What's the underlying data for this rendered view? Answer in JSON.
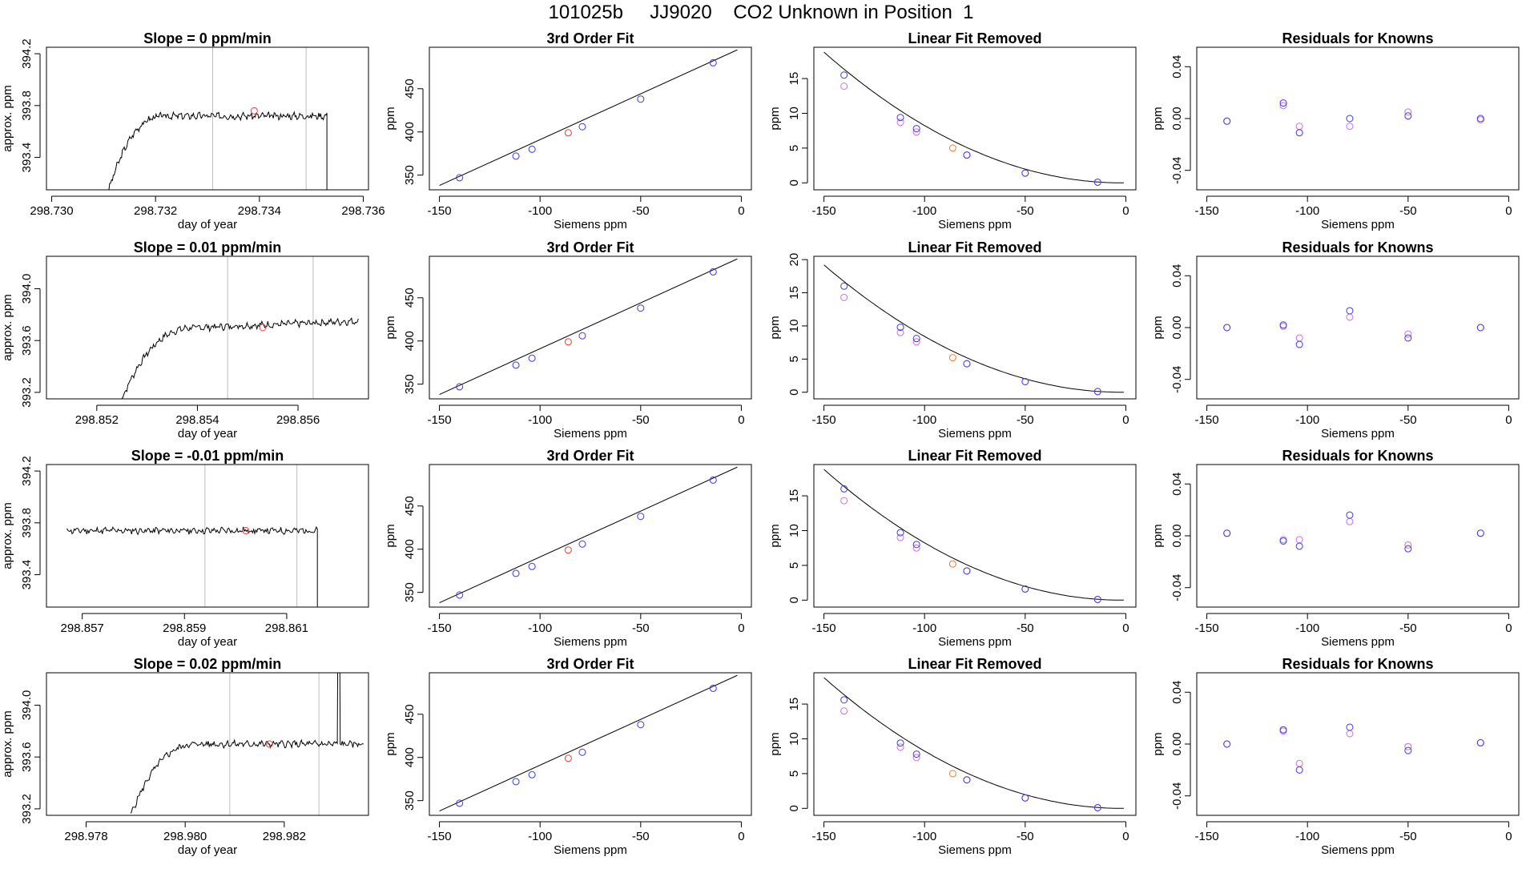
{
  "figure": {
    "title": "101025b     JJ9020    CO2 Unknown in Position  1"
  },
  "colors": {
    "axis": "#000000",
    "trace": "#000000",
    "vline": "#bdbdbd",
    "current_point": "#e8413c",
    "known_points": "#3a3ae8",
    "alt_points": "#d46be0",
    "unknown_fit_point": "#e8412c",
    "unknown_orange": "#f07a2a"
  },
  "chart_data": [
    {
      "type": "line",
      "row": 0,
      "col": 0,
      "title": "Slope =  0  ppm/min",
      "xlabel": "day of year",
      "ylabel": "approx. ppm",
      "xlim": [
        298.7299,
        298.7361
      ],
      "ylim": [
        393.15,
        394.25
      ],
      "xticks": [
        298.73,
        298.732,
        298.734,
        298.736
      ],
      "xtick_labels": [
        "298.730",
        "298.732",
        "298.734",
        "298.736"
      ],
      "yticks": [
        393.4,
        393.8,
        394.2
      ],
      "ytick_labels": [
        "393.4",
        "393.8",
        "394.2"
      ],
      "vlines": [
        298.7331,
        298.7349
      ],
      "current_point": {
        "x": 298.7339,
        "y": 393.76
      },
      "trace": {
        "start": 298.7311,
        "plateau_from": 298.7322,
        "end": 298.7353,
        "base": 393.72,
        "low": 393.15,
        "amplitude": 0.02,
        "seed": 3
      }
    },
    {
      "type": "scatter",
      "row": 0,
      "col": 1,
      "title": "3rd Order Fit",
      "xlabel": "Siemens ppm",
      "ylabel": "ppm",
      "xlim": [
        -155,
        5
      ],
      "ylim": [
        333,
        498
      ],
      "xticks": [
        -150,
        -100,
        -50,
        0
      ],
      "xtick_labels": [
        "-150",
        "-100",
        "-50",
        "0"
      ],
      "yticks": [
        350,
        400,
        450
      ],
      "ytick_labels": [
        "350",
        "400",
        "450"
      ],
      "fit_line": [
        [
          -150,
          338
        ],
        [
          -2,
          495
        ]
      ],
      "known_points": [
        [
          -140,
          347
        ],
        [
          -112,
          372
        ],
        [
          -104,
          380
        ],
        [
          -79,
          406
        ],
        [
          -50,
          438
        ],
        [
          -14,
          480
        ]
      ],
      "unknown_point": [
        -86,
        399
      ]
    },
    {
      "type": "scatter",
      "row": 0,
      "col": 2,
      "title": "Linear Fit Removed",
      "xlabel": "Siemens ppm",
      "ylabel": "ppm",
      "xlim": [
        -155,
        5
      ],
      "ylim": [
        -1,
        19.5
      ],
      "xticks": [
        -150,
        -100,
        -50,
        0
      ],
      "xtick_labels": [
        "-150",
        "-100",
        "-50",
        "0"
      ],
      "yticks": [
        0,
        5,
        10,
        15
      ],
      "ytick_labels": [
        "0",
        "5",
        "10",
        "15"
      ],
      "curve": {
        "x0": -150,
        "x1": -1,
        "ymax": 18.8,
        "vertex": -2
      },
      "known_points": [
        [
          -140,
          15.5
        ],
        [
          -112,
          9.4
        ],
        [
          -104,
          7.8
        ],
        [
          -79,
          4.0
        ],
        [
          -50,
          1.4
        ],
        [
          -14,
          0.1
        ]
      ],
      "alt_points": [
        [
          -140,
          13.9
        ],
        [
          -112,
          8.7
        ],
        [
          -104,
          7.3
        ],
        [
          -79,
          4.0
        ],
        [
          -50,
          1.4
        ],
        [
          -14,
          0.1
        ]
      ],
      "unknown_point": [
        -86,
        5.0
      ]
    },
    {
      "type": "scatter",
      "row": 0,
      "col": 3,
      "title": "Residuals for Knowns",
      "xlabel": "Siemens ppm",
      "ylabel": "ppm",
      "xlim": [
        -155,
        5
      ],
      "ylim": [
        -0.055,
        0.055
      ],
      "xticks": [
        -150,
        -100,
        -50,
        0
      ],
      "xtick_labels": [
        "-150",
        "-100",
        "-50",
        "0"
      ],
      "yticks": [
        -0.04,
        0.0,
        0.04
      ],
      "ytick_labels": [
        "-0.04",
        "0.00",
        "0.04"
      ],
      "known_points": [
        [
          -140,
          -0.002
        ],
        [
          -112,
          0.012
        ],
        [
          -104,
          -0.011
        ],
        [
          -79,
          0.0
        ],
        [
          -50,
          0.002
        ],
        [
          -14,
          0.0
        ]
      ],
      "alt_points": [
        [
          -140,
          -0.002
        ],
        [
          -112,
          0.01
        ],
        [
          -104,
          -0.006
        ],
        [
          -79,
          -0.006
        ],
        [
          -50,
          0.005
        ],
        [
          -14,
          -0.001
        ]
      ]
    },
    {
      "type": "line",
      "row": 1,
      "col": 0,
      "title": "Slope =  0.01  ppm/min",
      "xlabel": "day of year",
      "ylabel": "approx. ppm",
      "xlim": [
        298.851,
        298.8574
      ],
      "ylim": [
        393.15,
        394.25
      ],
      "xticks": [
        298.852,
        298.854,
        298.856
      ],
      "xtick_labels": [
        "298.852",
        "298.854",
        "298.856"
      ],
      "yticks": [
        393.2,
        393.6,
        394.0
      ],
      "ytick_labels": [
        "393.2",
        "393.6",
        "394.0"
      ],
      "vlines": [
        298.8546,
        298.8563
      ],
      "current_point": {
        "x": 298.8553,
        "y": 393.7
      },
      "trace": {
        "start": 298.8525,
        "plateau_from": 298.854,
        "end": 298.8572,
        "base": 393.7,
        "low": 393.15,
        "amplitude": 0.02,
        "seed": 7,
        "slope": 0.05
      }
    },
    {
      "type": "scatter",
      "row": 1,
      "col": 1,
      "title": "3rd Order Fit",
      "xlabel": "Siemens ppm",
      "ylabel": "ppm",
      "xlim": [
        -155,
        5
      ],
      "ylim": [
        333,
        498
      ],
      "xticks": [
        -150,
        -100,
        -50,
        0
      ],
      "xtick_labels": [
        "-150",
        "-100",
        "-50",
        "0"
      ],
      "yticks": [
        350,
        400,
        450
      ],
      "ytick_labels": [
        "350",
        "400",
        "450"
      ],
      "fit_line": [
        [
          -150,
          338
        ],
        [
          -2,
          495
        ]
      ],
      "known_points": [
        [
          -140,
          347
        ],
        [
          -112,
          372
        ],
        [
          -104,
          380
        ],
        [
          -79,
          406
        ],
        [
          -50,
          438
        ],
        [
          -14,
          480
        ]
      ],
      "unknown_point": [
        -86,
        399
      ]
    },
    {
      "type": "scatter",
      "row": 1,
      "col": 2,
      "title": "Linear Fit Removed",
      "xlabel": "Siemens ppm",
      "ylabel": "ppm",
      "xlim": [
        -155,
        5
      ],
      "ylim": [
        -1,
        20.5
      ],
      "xticks": [
        -150,
        -100,
        -50,
        0
      ],
      "xtick_labels": [
        "-150",
        "-100",
        "-50",
        "0"
      ],
      "yticks": [
        0,
        5,
        10,
        15,
        20
      ],
      "ytick_labels": [
        "0",
        "5",
        "10",
        "15",
        "20"
      ],
      "curve": {
        "x0": -150,
        "x1": -1,
        "ymax": 19.2,
        "vertex": -2
      },
      "known_points": [
        [
          -140,
          16.0
        ],
        [
          -112,
          9.8
        ],
        [
          -104,
          8.1
        ],
        [
          -79,
          4.3
        ],
        [
          -50,
          1.6
        ],
        [
          -14,
          0.1
        ]
      ],
      "alt_points": [
        [
          -140,
          14.3
        ],
        [
          -112,
          9.0
        ],
        [
          -104,
          7.6
        ],
        [
          -79,
          4.3
        ],
        [
          -50,
          1.6
        ],
        [
          -14,
          0.1
        ]
      ],
      "unknown_point": [
        -86,
        5.2
      ]
    },
    {
      "type": "scatter",
      "row": 1,
      "col": 3,
      "title": "Residuals for Knowns",
      "xlabel": "Siemens ppm",
      "ylabel": "ppm",
      "xlim": [
        -155,
        5
      ],
      "ylim": [
        -0.055,
        0.055
      ],
      "xticks": [
        -150,
        -100,
        -50,
        0
      ],
      "xtick_labels": [
        "-150",
        "-100",
        "-50",
        "0"
      ],
      "yticks": [
        -0.04,
        0.0,
        0.04
      ],
      "ytick_labels": [
        "-0.04",
        "0.00",
        "0.04"
      ],
      "known_points": [
        [
          -140,
          0.0
        ],
        [
          -112,
          0.002
        ],
        [
          -104,
          -0.013
        ],
        [
          -79,
          0.013
        ],
        [
          -50,
          -0.008
        ],
        [
          -14,
          0.0
        ]
      ],
      "alt_points": [
        [
          -140,
          0.0
        ],
        [
          -112,
          0.001
        ],
        [
          -104,
          -0.008
        ],
        [
          -79,
          0.008
        ],
        [
          -50,
          -0.005
        ],
        [
          -14,
          0.0
        ]
      ]
    },
    {
      "type": "line",
      "row": 2,
      "col": 0,
      "title": "Slope =  -0.01  ppm/min",
      "xlabel": "day of year",
      "ylabel": "approx. ppm",
      "xlim": [
        298.8563,
        298.8626
      ],
      "ylim": [
        393.15,
        394.25
      ],
      "xticks": [
        298.857,
        298.859,
        298.861
      ],
      "xtick_labels": [
        "298.857",
        "298.859",
        "298.861"
      ],
      "yticks": [
        393.4,
        393.8,
        394.2
      ],
      "ytick_labels": [
        "393.4",
        "393.8",
        "394.2"
      ],
      "vlines": [
        298.8594,
        298.8612
      ],
      "current_point": {
        "x": 298.8602,
        "y": 393.74
      },
      "trace": {
        "start": 298.8567,
        "plateau_from": 298.8567,
        "end": 298.8616,
        "base": 393.74,
        "low": 393.15,
        "amplitude": 0.02,
        "seed": 11,
        "drop_at_end": true
      }
    },
    {
      "type": "scatter",
      "row": 2,
      "col": 1,
      "title": "3rd Order Fit",
      "xlabel": "Siemens ppm",
      "ylabel": "ppm",
      "xlim": [
        -155,
        5
      ],
      "ylim": [
        333,
        498
      ],
      "xticks": [
        -150,
        -100,
        -50,
        0
      ],
      "xtick_labels": [
        "-150",
        "-100",
        "-50",
        "0"
      ],
      "yticks": [
        350,
        400,
        450
      ],
      "ytick_labels": [
        "350",
        "400",
        "450"
      ],
      "fit_line": [
        [
          -150,
          338
        ],
        [
          -2,
          495
        ]
      ],
      "known_points": [
        [
          -140,
          347
        ],
        [
          -112,
          372
        ],
        [
          -104,
          380
        ],
        [
          -79,
          406
        ],
        [
          -50,
          438
        ],
        [
          -14,
          480
        ]
      ],
      "unknown_point": [
        -86,
        399
      ]
    },
    {
      "type": "scatter",
      "row": 2,
      "col": 2,
      "title": "Linear Fit Removed",
      "xlabel": "Siemens ppm",
      "ylabel": "ppm",
      "xlim": [
        -155,
        5
      ],
      "ylim": [
        -1,
        19.5
      ],
      "xticks": [
        -150,
        -100,
        -50,
        0
      ],
      "xtick_labels": [
        "-150",
        "-100",
        "-50",
        "0"
      ],
      "yticks": [
        0,
        5,
        10,
        15
      ],
      "ytick_labels": [
        "0",
        "5",
        "10",
        "15"
      ],
      "curve": {
        "x0": -150,
        "x1": -1,
        "ymax": 18.8,
        "vertex": -2
      },
      "known_points": [
        [
          -140,
          16.0
        ],
        [
          -112,
          9.7
        ],
        [
          -104,
          8.0
        ],
        [
          -79,
          4.2
        ],
        [
          -50,
          1.6
        ],
        [
          -14,
          0.1
        ]
      ],
      "alt_points": [
        [
          -140,
          14.3
        ],
        [
          -112,
          9.0
        ],
        [
          -104,
          7.5
        ],
        [
          -79,
          4.2
        ],
        [
          -50,
          1.6
        ],
        [
          -14,
          0.1
        ]
      ],
      "unknown_point": [
        -86,
        5.2
      ]
    },
    {
      "type": "scatter",
      "row": 2,
      "col": 3,
      "title": "Residuals for Knowns",
      "xlabel": "Siemens ppm",
      "ylabel": "ppm",
      "xlim": [
        -155,
        5
      ],
      "ylim": [
        -0.055,
        0.055
      ],
      "xticks": [
        -150,
        -100,
        -50,
        0
      ],
      "xtick_labels": [
        "-150",
        "-100",
        "-50",
        "0"
      ],
      "yticks": [
        -0.04,
        0.0,
        0.04
      ],
      "ytick_labels": [
        "-0.04",
        "0.00",
        "0.04"
      ],
      "known_points": [
        [
          -140,
          0.002
        ],
        [
          -112,
          -0.004
        ],
        [
          -104,
          -0.008
        ],
        [
          -79,
          0.016
        ],
        [
          -50,
          -0.01
        ],
        [
          -14,
          0.002
        ]
      ],
      "alt_points": [
        [
          -140,
          0.002
        ],
        [
          -112,
          -0.003
        ],
        [
          -104,
          -0.003
        ],
        [
          -79,
          0.011
        ],
        [
          -50,
          -0.007
        ],
        [
          -14,
          0.002
        ]
      ]
    },
    {
      "type": "line",
      "row": 3,
      "col": 0,
      "title": "Slope =  0.02  ppm/min",
      "xlabel": "day of year",
      "ylabel": "approx. ppm",
      "xlim": [
        298.9772,
        298.9837
      ],
      "ylim": [
        393.15,
        394.25
      ],
      "xticks": [
        298.978,
        298.98,
        298.982
      ],
      "xtick_labels": [
        "298.978",
        "298.980",
        "298.982"
      ],
      "yticks": [
        393.2,
        393.6,
        394.0
      ],
      "ytick_labels": [
        "393.2",
        "393.6",
        "394.0"
      ],
      "vlines": [
        298.9809,
        298.9827
      ],
      "current_point": {
        "x": 298.9817,
        "y": 393.7
      },
      "trace": {
        "start": 298.9789,
        "plateau_from": 298.9803,
        "end": 298.9836,
        "base": 393.7,
        "low": 393.15,
        "amplitude": 0.02,
        "seed": 5,
        "spike_at": 298.9831
      }
    },
    {
      "type": "scatter",
      "row": 3,
      "col": 1,
      "title": "3rd Order Fit",
      "xlabel": "Siemens ppm",
      "ylabel": "ppm",
      "xlim": [
        -155,
        5
      ],
      "ylim": [
        333,
        498
      ],
      "xticks": [
        -150,
        -100,
        -50,
        0
      ],
      "xtick_labels": [
        "-150",
        "-100",
        "-50",
        "0"
      ],
      "yticks": [
        350,
        400,
        450
      ],
      "ytick_labels": [
        "350",
        "400",
        "450"
      ],
      "fit_line": [
        [
          -150,
          338
        ],
        [
          -2,
          495
        ]
      ],
      "known_points": [
        [
          -140,
          347
        ],
        [
          -112,
          372
        ],
        [
          -104,
          380
        ],
        [
          -79,
          406
        ],
        [
          -50,
          438
        ],
        [
          -14,
          480
        ]
      ],
      "unknown_point": [
        -86,
        399
      ]
    },
    {
      "type": "scatter",
      "row": 3,
      "col": 2,
      "title": "Linear Fit Removed",
      "xlabel": "Siemens ppm",
      "ylabel": "ppm",
      "xlim": [
        -155,
        5
      ],
      "ylim": [
        -1,
        19.5
      ],
      "xticks": [
        -150,
        -100,
        -50,
        0
      ],
      "xtick_labels": [
        "-150",
        "-100",
        "-50",
        "0"
      ],
      "yticks": [
        0,
        5,
        10,
        15
      ],
      "ytick_labels": [
        "0",
        "5",
        "10",
        "15"
      ],
      "curve": {
        "x0": -150,
        "x1": -1,
        "ymax": 18.8,
        "vertex": -2
      },
      "known_points": [
        [
          -140,
          15.6
        ],
        [
          -112,
          9.4
        ],
        [
          -104,
          7.8
        ],
        [
          -79,
          4.1
        ],
        [
          -50,
          1.5
        ],
        [
          -14,
          0.1
        ]
      ],
      "alt_points": [
        [
          -140,
          14.0
        ],
        [
          -112,
          8.8
        ],
        [
          -104,
          7.3
        ],
        [
          -79,
          4.1
        ],
        [
          -50,
          1.5
        ],
        [
          -14,
          0.1
        ]
      ],
      "unknown_point": [
        -86,
        5.0
      ]
    },
    {
      "type": "scatter",
      "row": 3,
      "col": 3,
      "title": "Residuals for Knowns",
      "xlabel": "Siemens ppm",
      "ylabel": "ppm",
      "xlim": [
        -155,
        5
      ],
      "ylim": [
        -0.055,
        0.055
      ],
      "xticks": [
        -150,
        -100,
        -50,
        0
      ],
      "xtick_labels": [
        "-150",
        "-100",
        "-50",
        "0"
      ],
      "yticks": [
        -0.04,
        0.0,
        0.04
      ],
      "ytick_labels": [
        "-0.04",
        "0.00",
        "0.04"
      ],
      "known_points": [
        [
          -140,
          0.0
        ],
        [
          -112,
          0.011
        ],
        [
          -104,
          -0.02
        ],
        [
          -79,
          0.013
        ],
        [
          -50,
          -0.005
        ],
        [
          -14,
          0.001
        ]
      ],
      "alt_points": [
        [
          -140,
          0.0
        ],
        [
          -112,
          0.01
        ],
        [
          -104,
          -0.015
        ],
        [
          -79,
          0.008
        ],
        [
          -50,
          -0.002
        ],
        [
          -14,
          0.001
        ]
      ]
    }
  ]
}
